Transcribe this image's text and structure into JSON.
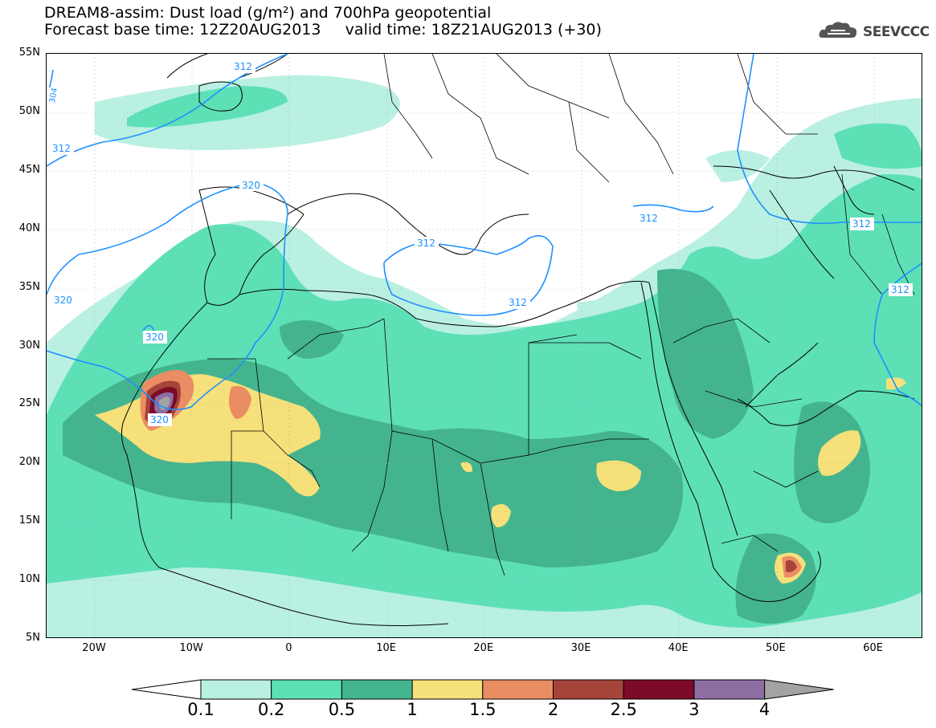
{
  "title": {
    "line1": "DREAM8-assim: Dust load (g/m²) and 700hPa geopotential",
    "line2": "Forecast base time: 12Z20AUG2013     valid time: 18Z21AUG2013 (+30)"
  },
  "logo": {
    "text": "SEEVCCC",
    "icon": "cloud-icon"
  },
  "map": {
    "lon_range": [
      -25,
      65
    ],
    "lat_range": [
      5,
      55
    ],
    "lat_ticks": [
      "55N",
      "50N",
      "45N",
      "40N",
      "35N",
      "30N",
      "25N",
      "20N",
      "15N",
      "10N",
      "5N"
    ],
    "lon_ticks": [
      "20W",
      "10W",
      "0",
      "10E",
      "20E",
      "30E",
      "40E",
      "50E",
      "60E"
    ],
    "contour_labels": [
      "312",
      "304",
      "312",
      "320",
      "320",
      "312",
      "312",
      "312",
      "320",
      "320",
      "312",
      "312"
    ],
    "contour_color": "#1e90ff"
  },
  "colorbar": {
    "labels": [
      "0.1",
      "0.2",
      "0.5",
      "1",
      "1.5",
      "2",
      "2.5",
      "3",
      "4"
    ],
    "colors": [
      "#ffffff",
      "#b9f0e2",
      "#5ee0b7",
      "#44b48e",
      "#f5e07a",
      "#ea8d63",
      "#a6443a",
      "#7c0a28",
      "#8d6ea3",
      "#a3a3a3"
    ]
  }
}
